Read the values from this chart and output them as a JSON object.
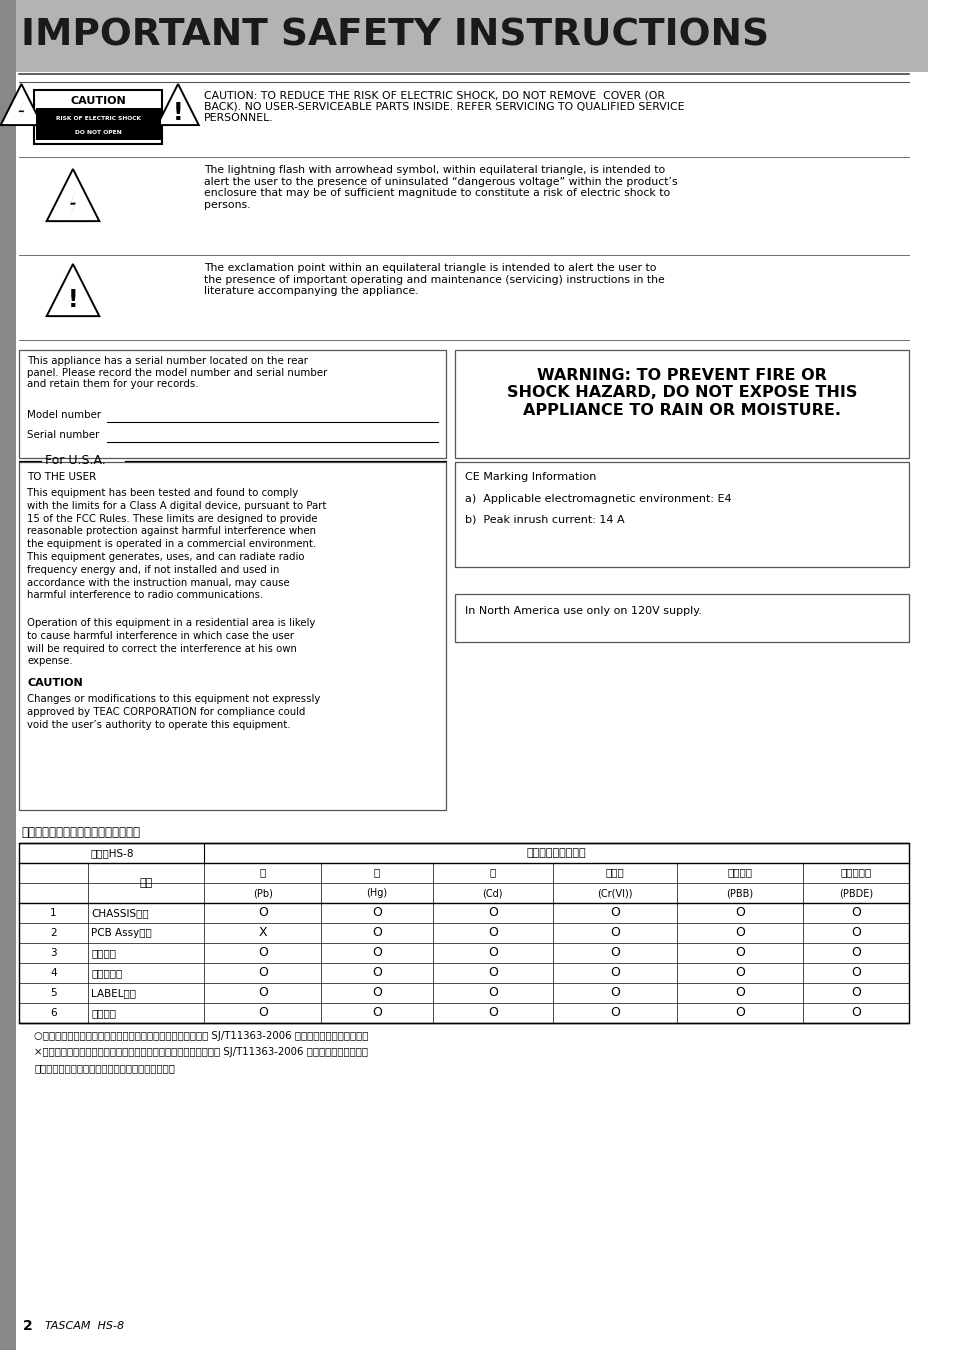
{
  "title": "IMPORTANT SAFETY INSTRUCTIONS",
  "title_bg": "#b3b3b3",
  "title_color": "#1a1a1a",
  "page_bg": "#ffffff",
  "caution_row_text": "CAUTION: TO REDUCE THE RISK OF ELECTRIC SHOCK, DO NOT REMOVE  COVER (OR\nBACK). NO USER-SERVICEABLE PARTS INSIDE. REFER SERVICING TO QUALIFIED SERVICE\nPERSONNEL.",
  "lightning_text": "The lightning flash with arrowhead symbol, within equilateral triangle, is intended to\nalert the user to the presence of uninsulated “dangerous voltage” within the product’s\nenclosure that may be of sufficient magnitude to constitute a risk of electric shock to\npersons.",
  "exclamation_text": "The exclamation point within an equilateral triangle is intended to alert the user to\nthe presence of important operating and maintenance (servicing) instructions in the\nliterature accompanying the appliance.",
  "serial_text": "This appliance has a serial number located on the rear\npanel. Please record the model number and serial number\nand retain them for your records.",
  "model_label": "Model number",
  "serial_label": "Serial number",
  "warning_text": "WARNING: TO PREVENT FIRE OR\nSHOCK HAZARD, DO NOT EXPOSE THIS\nAPPLIANCE TO RAIN OR MOISTURE.",
  "for_usa_title": "For U.S.A.",
  "to_user_title": "TO THE USER",
  "fcc_text1": "This equipment has been tested and found to comply\nwith the limits for a Class A digital device, pursuant to Part\n15 of the FCC Rules. These limits are designed to provide\nreasonable protection against harmful interference when\nthe equipment is operated in a commercial environment.\nThis equipment generates, uses, and can radiate radio\nfrequency energy and, if not installed and used in\naccordance with the instruction manual, may cause\nharmful interference to radio communications.",
  "fcc_text2": "Operation of this equipment in a residential area is likely\nto cause harmful interference in which case the user\nwill be required to correct the interference at his own\nexpense.",
  "caution_sub_title": "CAUTION",
  "caution_mod_text": "Changes or modifications to this equipment not expressly\napproved by TEAC CORPORATION for compliance could\nvoid the user’s authority to operate this equipment.",
  "ce_title": "CE Marking Information",
  "ce_a": "a)  Applicable electromagnetic environment: E4",
  "ce_b": "b)  Peak inrush current: 14 A",
  "north_america_text": "In North America use only on 120V supply.",
  "chinese_title": "产品有毒有害物质或元素的名称及含量",
  "table_model_label": "机种：HS-8",
  "table_header_main": "有毒有害物质或元素",
  "table_name_col": "品名",
  "table_headers_cn": [
    "鲁",
    "汞",
    "镟",
    "六价铬",
    "多溯联苯",
    "多溯二苯醚"
  ],
  "table_headers_en": [
    "(Pb)",
    "(Hg)",
    "(Cd)",
    "(Cr(VI))",
    "(PBB)",
    "(PBDE)"
  ],
  "table_rows": [
    [
      "1",
      "CHASSIS部份",
      "O",
      "O",
      "O",
      "O",
      "O",
      "O"
    ],
    [
      "2",
      "PCB Assy部份",
      "X",
      "O",
      "O",
      "O",
      "O",
      "O"
    ],
    [
      "3",
      "线材部份",
      "O",
      "O",
      "O",
      "O",
      "O",
      "O"
    ],
    [
      "4",
      "附属品部份",
      "O",
      "O",
      "O",
      "O",
      "O",
      "O"
    ],
    [
      "5",
      "LABEL部份",
      "O",
      "O",
      "O",
      "O",
      "O",
      "O"
    ],
    [
      "6",
      "包装部份",
      "O",
      "O",
      "O",
      "O",
      "O",
      "O"
    ]
  ],
  "note1": "○：表示该有毒有害物质在该部件所有均质材料中的含有量均在 SJ/T11363-2006 标准规定的限量要求以下。",
  "note2": "×：表示该有毒有害物质至少在该部件的某一均质材料中的含量超出 SJ/T11363-2006 标准规定的限量要求。",
  "note3": "（针对现在代替技术困难的电子部品及合金中的鎔）",
  "footer_num": "2",
  "footer_text": "TASCAM  HS-8"
}
